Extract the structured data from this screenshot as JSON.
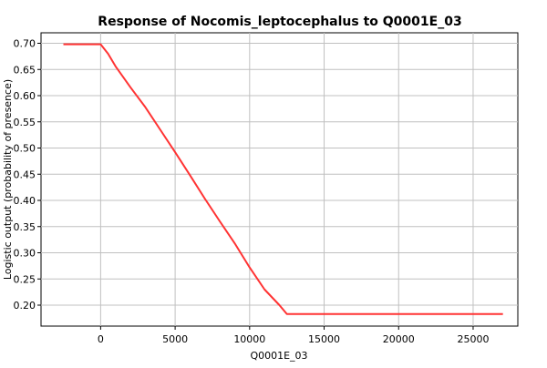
{
  "chart_data": {
    "type": "line",
    "title": "Response of Nocomis_leptocephalus to Q0001E_03",
    "xlabel": "Q0001E_03",
    "ylabel": "Logistic output (probability of presence)",
    "xlim": [
      -4000,
      28000
    ],
    "ylim": [
      0.16,
      0.72
    ],
    "x_ticks": [
      0,
      5000,
      10000,
      15000,
      20000,
      25000
    ],
    "y_ticks": [
      0.2,
      0.25,
      0.3,
      0.35,
      0.4,
      0.45,
      0.5,
      0.55,
      0.6,
      0.65,
      0.7
    ],
    "grid": true,
    "series": [
      {
        "color": "#ff3333",
        "x": [
          -2500,
          0,
          500,
          1000,
          2000,
          3000,
          4000,
          5000,
          6000,
          7000,
          8000,
          9000,
          10000,
          11000,
          12000,
          12500,
          15000,
          20000,
          25000,
          27000
        ],
        "y": [
          0.698,
          0.698,
          0.68,
          0.656,
          0.616,
          0.578,
          0.535,
          0.492,
          0.448,
          0.403,
          0.36,
          0.318,
          0.272,
          0.23,
          0.2,
          0.183,
          0.183,
          0.183,
          0.183,
          0.183
        ]
      }
    ]
  }
}
